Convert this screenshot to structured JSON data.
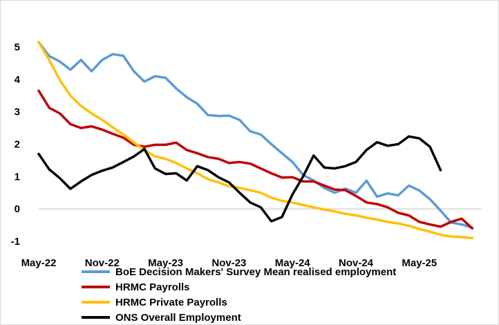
{
  "chart_data": {
    "type": "line",
    "title": "",
    "xlabel": "",
    "ylabel": "",
    "ylim": [
      -1,
      5
    ],
    "yticks": [
      "5",
      "4",
      "3",
      "2",
      "1",
      "0",
      "-1"
    ],
    "xtick_labels": [
      "May-22",
      "Nov-22",
      "May-23",
      "Nov-23",
      "May-24",
      "Nov-24",
      "May-25"
    ],
    "x_period": "monthly, May-22 to Oct-25 (42 points)",
    "legend_position": "bottom",
    "series": [
      {
        "name": "BoE Decision Makers' Survey Mean realised employment",
        "color": "#5b9bd5",
        "values": [
          5.15,
          4.72,
          4.55,
          4.3,
          4.6,
          4.25,
          4.6,
          4.78,
          4.73,
          4.25,
          3.93,
          4.1,
          4.05,
          3.72,
          3.45,
          3.25,
          2.9,
          2.87,
          2.88,
          2.75,
          2.4,
          2.3,
          2.0,
          1.72,
          1.45,
          1.05,
          0.88,
          0.65,
          0.5,
          0.63,
          0.5,
          0.87,
          0.38,
          0.48,
          0.42,
          0.72,
          0.57,
          0.3,
          -0.05,
          -0.42,
          -0.48,
          -0.58
        ]
      },
      {
        "name": "HRMC Payrolls",
        "color": "#c00000",
        "values": [
          3.65,
          3.12,
          2.95,
          2.62,
          2.5,
          2.55,
          2.45,
          2.32,
          2.2,
          1.98,
          1.92,
          1.98,
          1.98,
          2.05,
          1.82,
          1.72,
          1.6,
          1.55,
          1.42,
          1.45,
          1.4,
          1.25,
          1.1,
          0.97,
          0.98,
          0.85,
          0.85,
          0.72,
          0.6,
          0.58,
          0.4,
          0.2,
          0.15,
          0.05,
          -0.12,
          -0.2,
          -0.4,
          -0.48,
          -0.55,
          -0.4,
          -0.3,
          -0.6
        ]
      },
      {
        "name": "HRMC Private Payrolls",
        "color": "#ffc000",
        "values": [
          5.15,
          4.6,
          3.98,
          3.5,
          3.18,
          2.95,
          2.75,
          2.52,
          2.3,
          2.05,
          1.82,
          1.62,
          1.55,
          1.42,
          1.25,
          1.1,
          0.92,
          0.82,
          0.7,
          0.65,
          0.58,
          0.5,
          0.35,
          0.25,
          0.2,
          0.12,
          0.05,
          -0.02,
          -0.08,
          -0.15,
          -0.2,
          -0.27,
          -0.33,
          -0.4,
          -0.45,
          -0.52,
          -0.62,
          -0.7,
          -0.8,
          -0.85,
          -0.87,
          -0.9
        ]
      },
      {
        "name": "ONS Overall Employment",
        "color": "#000000",
        "values": [
          1.7,
          1.22,
          0.95,
          0.62,
          0.85,
          1.05,
          1.18,
          1.28,
          1.45,
          1.62,
          1.85,
          1.25,
          1.08,
          1.1,
          0.88,
          1.32,
          1.2,
          0.98,
          0.82,
          0.5,
          0.2,
          0.05,
          -0.38,
          -0.25,
          0.45,
          1.0,
          1.65,
          1.28,
          1.25,
          1.32,
          1.45,
          1.82,
          2.06,
          1.95,
          2.0,
          2.24,
          2.18,
          1.92,
          1.2
        ]
      }
    ]
  }
}
